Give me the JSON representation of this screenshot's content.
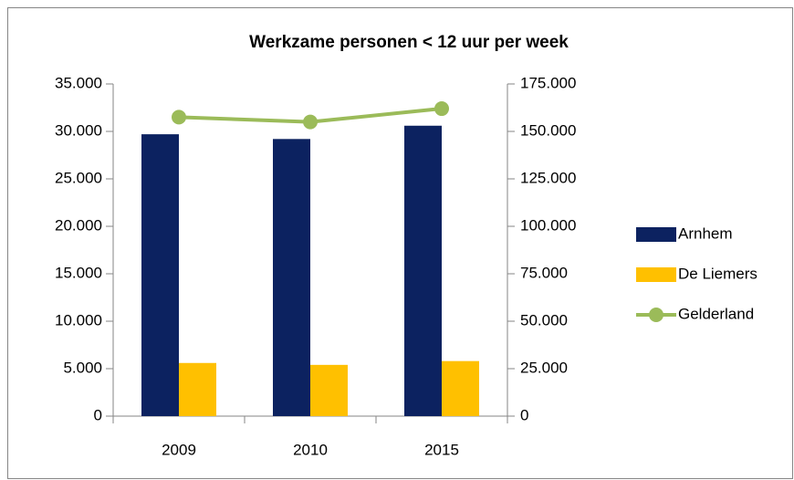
{
  "chart_data": {
    "type": "bar",
    "title": "Werkzame personen < 12 uur per week",
    "categories": [
      "2009",
      "2010",
      "2015"
    ],
    "series": [
      {
        "name": "Arnhem",
        "color": "#0c2260",
        "values": [
          29700,
          29200,
          30600
        ]
      },
      {
        "name": "De Liemers",
        "color": "#ffc000",
        "values": [
          5600,
          5400,
          5800
        ]
      },
      {
        "name": "Gelderland",
        "color": "#9bbb59",
        "type": "line",
        "axis": "y2",
        "values": [
          157500,
          155000,
          162000
        ]
      }
    ],
    "ylim": [
      0,
      35000
    ],
    "yticks": [
      0,
      {
        "value": 5000,
        "label": "5.000"
      },
      {
        "value": 10000,
        "label": "10.000"
      },
      {
        "value": 15000,
        "label": "15.000"
      },
      {
        "value": 20000,
        "label": "20.000"
      },
      {
        "value": 25000,
        "label": "25.000"
      },
      {
        "value": 30000,
        "label": "30.000"
      },
      {
        "value": 35000,
        "label": "35.000"
      }
    ],
    "y2lim": [
      0,
      175000
    ],
    "y2ticks": [
      0,
      {
        "value": 25000,
        "label": "25.000"
      },
      {
        "value": 50000,
        "label": "50.000"
      },
      {
        "value": 75000,
        "label": "75.000"
      },
      {
        "value": 100000,
        "label": "100.000"
      },
      {
        "value": 125000,
        "label": "125.000"
      },
      {
        "value": 150000,
        "label": "150.000"
      },
      {
        "value": 175000,
        "label": "175.000"
      }
    ],
    "grid": false,
    "legend": "right"
  }
}
